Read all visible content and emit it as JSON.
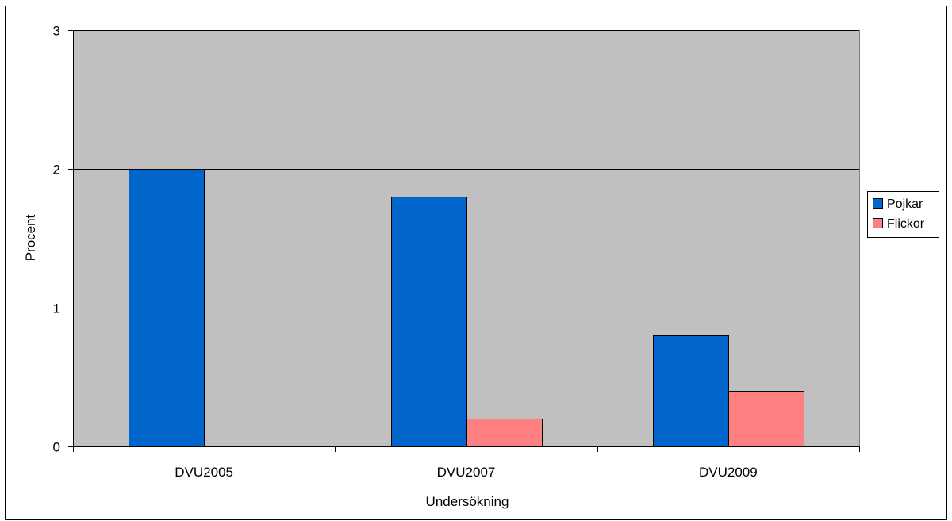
{
  "chart_data": {
    "type": "bar",
    "title": "",
    "xlabel": "Undersökning",
    "ylabel": "Procent",
    "ylim": [
      0,
      3
    ],
    "yticks": [
      "0",
      "1",
      "2",
      "3"
    ],
    "grid": true,
    "legend_position": "right",
    "categories": [
      "DVU2005",
      "DVU2007",
      "DVU2009"
    ],
    "series": [
      {
        "name": "Pojkar",
        "color": "#0066cc",
        "values": [
          2.0,
          1.8,
          0.8
        ]
      },
      {
        "name": "Flickor",
        "color": "#ff8080",
        "values": [
          0.0,
          0.2,
          0.4
        ]
      }
    ],
    "plot_background": "#c0c0c0"
  }
}
